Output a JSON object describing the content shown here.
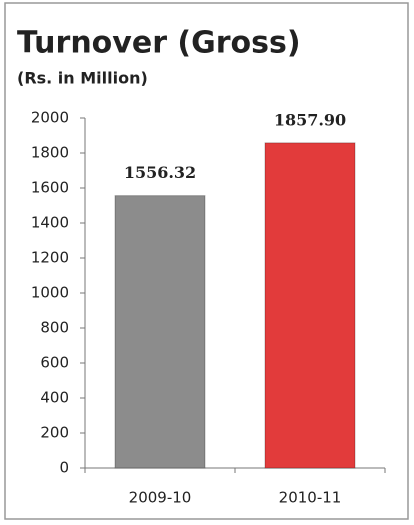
{
  "chart_data": {
    "type": "bar",
    "title": "Turnover (Gross)",
    "subtitle": "(Rs. in Million)",
    "categories": [
      "2009-10",
      "2010-11"
    ],
    "values": [
      1556.32,
      1857.9
    ],
    "value_labels": [
      "1556.32",
      "1857.90"
    ],
    "colors": [
      "#8c8c8c",
      "#e23b3b"
    ],
    "ylim": [
      0,
      2000
    ],
    "yticks": [
      0,
      200,
      400,
      600,
      800,
      1000,
      1200,
      1400,
      1600,
      1800,
      2000
    ],
    "grid": false
  }
}
